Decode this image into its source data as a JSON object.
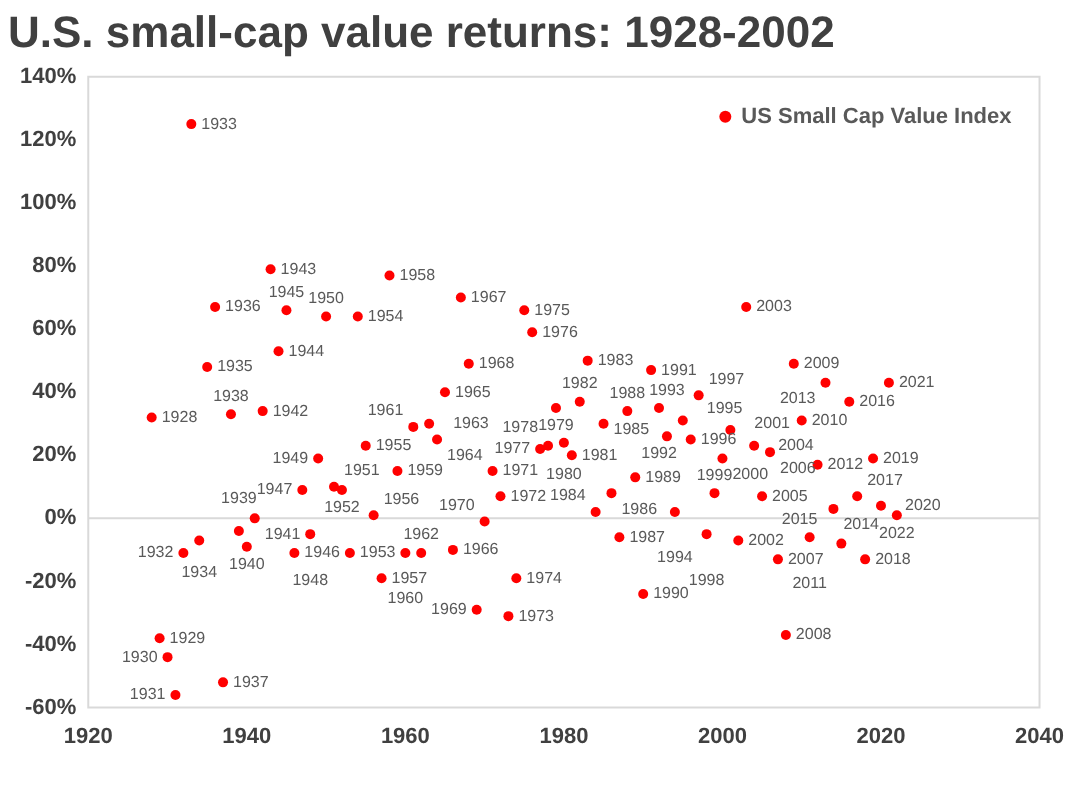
{
  "chart_data": {
    "type": "scatter",
    "title": "U.S. small-cap value returns: 1928-2002",
    "x": [
      1928,
      1929,
      1930,
      1931,
      1932,
      1933,
      1934,
      1935,
      1936,
      1937,
      1938,
      1939,
      1940,
      1941,
      1942,
      1943,
      1944,
      1945,
      1946,
      1947,
      1948,
      1949,
      1950,
      1951,
      1952,
      1953,
      1954,
      1955,
      1956,
      1957,
      1958,
      1959,
      1960,
      1961,
      1962,
      1963,
      1964,
      1965,
      1966,
      1967,
      1968,
      1969,
      1970,
      1971,
      1972,
      1973,
      1974,
      1975,
      1976,
      1977,
      1978,
      1979,
      1980,
      1981,
      1982,
      1983,
      1984,
      1985,
      1986,
      1987,
      1988,
      1989,
      1990,
      1991,
      1992,
      1993,
      1994,
      1995,
      1996,
      1997,
      1998,
      1999,
      2000,
      2001,
      2002,
      2003,
      2004,
      2005,
      2006,
      2007,
      2008,
      2009,
      2010,
      2011,
      2012,
      2013,
      2014,
      2015,
      2016,
      2017,
      2018,
      2019,
      2020,
      2021,
      2022
    ],
    "series": [
      {
        "name": "US Small Cap Value Index",
        "color": "#ff0000",
        "values": [
          32,
          -38,
          -44,
          -56,
          -11,
          125,
          -7,
          48,
          67,
          -52,
          33,
          -4,
          -9,
          0,
          34,
          79,
          53,
          66,
          -11,
          9,
          -5,
          19,
          64,
          10,
          9,
          -11,
          64,
          23,
          1,
          -19,
          77,
          15,
          -11,
          29,
          -11,
          30,
          25,
          40,
          -10,
          70,
          49,
          -29,
          -1,
          15,
          7,
          -31,
          -19,
          66,
          59,
          22,
          23,
          35,
          24,
          20,
          37,
          50,
          2,
          30,
          8,
          -6,
          34,
          13,
          -24,
          47,
          35,
          26,
          2,
          31,
          25,
          39,
          -5,
          8,
          19,
          28,
          -7,
          67,
          23,
          7,
          21,
          -13,
          -37,
          49,
          31,
          -6,
          17,
          43,
          3,
          -8,
          37,
          7,
          -13,
          19,
          4,
          43,
          1
        ]
      }
    ],
    "annotations": [
      {
        "text": "1928",
        "x": 1928,
        "y": 32
      },
      {
        "text": "1929",
        "x": 1929,
        "y": -38
      },
      {
        "text": "1930",
        "x": 1930,
        "y": -44
      },
      {
        "text": "1931",
        "x": 1931,
        "y": -56
      },
      {
        "text": "1932",
        "x": 1932,
        "y": -11
      },
      {
        "text": "1933",
        "x": 1933,
        "y": 125
      },
      {
        "text": "1934",
        "x": 1934,
        "y": -7
      },
      {
        "text": "1935",
        "x": 1935,
        "y": 48
      },
      {
        "text": "1936",
        "x": 1936,
        "y": 67
      },
      {
        "text": "1937",
        "x": 1937,
        "y": -52
      },
      {
        "text": "1938",
        "x": 1938,
        "y": 33
      },
      {
        "text": "1939",
        "x": 1939,
        "y": -4
      },
      {
        "text": "1940",
        "x": 1940,
        "y": -9
      },
      {
        "text": "1941",
        "x": 1941,
        "y": 0
      },
      {
        "text": "1942",
        "x": 1942,
        "y": 34
      },
      {
        "text": "1943",
        "x": 1943,
        "y": 79
      },
      {
        "text": "1944",
        "x": 1944,
        "y": 53
      },
      {
        "text": "1945",
        "x": 1945,
        "y": 66
      },
      {
        "text": "1946",
        "x": 1946,
        "y": -11
      },
      {
        "text": "1947",
        "x": 1947,
        "y": 9
      },
      {
        "text": "1948",
        "x": 1948,
        "y": -5
      },
      {
        "text": "1949",
        "x": 1949,
        "y": 19
      },
      {
        "text": "1950",
        "x": 1950,
        "y": 64
      },
      {
        "text": "1951",
        "x": 1951,
        "y": 10
      },
      {
        "text": "1952",
        "x": 1952,
        "y": 9
      },
      {
        "text": "1953",
        "x": 1953,
        "y": -11
      },
      {
        "text": "1954",
        "x": 1954,
        "y": 64
      },
      {
        "text": "1955",
        "x": 1955,
        "y": 23
      },
      {
        "text": "1956",
        "x": 1956,
        "y": 1
      },
      {
        "text": "1957",
        "x": 1957,
        "y": -19
      },
      {
        "text": "1958",
        "x": 1958,
        "y": 77
      },
      {
        "text": "1959",
        "x": 1959,
        "y": 15
      },
      {
        "text": "1960",
        "x": 1960,
        "y": -11
      },
      {
        "text": "1961",
        "x": 1961,
        "y": 29
      },
      {
        "text": "1962",
        "x": 1962,
        "y": -11
      },
      {
        "text": "1963",
        "x": 1963,
        "y": 30
      },
      {
        "text": "1964",
        "x": 1964,
        "y": 25
      },
      {
        "text": "1965",
        "x": 1965,
        "y": 40
      },
      {
        "text": "1966",
        "x": 1966,
        "y": -10
      },
      {
        "text": "1967",
        "x": 1967,
        "y": 70
      },
      {
        "text": "1968",
        "x": 1968,
        "y": 49
      },
      {
        "text": "1969",
        "x": 1969,
        "y": -29
      },
      {
        "text": "1970",
        "x": 1970,
        "y": -1
      },
      {
        "text": "1971",
        "x": 1971,
        "y": 15
      },
      {
        "text": "1972",
        "x": 1972,
        "y": 7
      },
      {
        "text": "1973",
        "x": 1973,
        "y": -31
      },
      {
        "text": "1974",
        "x": 1974,
        "y": -19
      },
      {
        "text": "1975",
        "x": 1975,
        "y": 66
      },
      {
        "text": "1976",
        "x": 1976,
        "y": 59
      },
      {
        "text": "1977",
        "x": 1977,
        "y": 22
      },
      {
        "text": "1978",
        "x": 1978,
        "y": 23
      },
      {
        "text": "1979",
        "x": 1979,
        "y": 35
      },
      {
        "text": "1980",
        "x": 1980,
        "y": 24
      },
      {
        "text": "1981",
        "x": 1981,
        "y": 20
      },
      {
        "text": "1982",
        "x": 1982,
        "y": 37
      },
      {
        "text": "1983",
        "x": 1983,
        "y": 50
      },
      {
        "text": "1984",
        "x": 1984,
        "y": 2
      },
      {
        "text": "1985",
        "x": 1985,
        "y": 30
      },
      {
        "text": "1986",
        "x": 1986,
        "y": 8
      },
      {
        "text": "1987",
        "x": 1987,
        "y": -6
      },
      {
        "text": "1988",
        "x": 1988,
        "y": 34
      },
      {
        "text": "1989",
        "x": 1989,
        "y": 13
      },
      {
        "text": "1990",
        "x": 1990,
        "y": -24
      },
      {
        "text": "1991",
        "x": 1991,
        "y": 47
      },
      {
        "text": "1992",
        "x": 1992,
        "y": 35
      },
      {
        "text": "1993",
        "x": 1993,
        "y": 26
      },
      {
        "text": "1994",
        "x": 1994,
        "y": 2
      },
      {
        "text": "1995",
        "x": 1995,
        "y": 31
      },
      {
        "text": "1996",
        "x": 1996,
        "y": 25
      },
      {
        "text": "1997",
        "x": 1997,
        "y": 39
      },
      {
        "text": "1998",
        "x": 1998,
        "y": -5
      },
      {
        "text": "1999",
        "x": 1999,
        "y": 8
      },
      {
        "text": "2000",
        "x": 2000,
        "y": 19
      },
      {
        "text": "2001",
        "x": 2001,
        "y": 28
      },
      {
        "text": "2002",
        "x": 2002,
        "y": -7
      },
      {
        "text": "2003",
        "x": 2003,
        "y": 67
      },
      {
        "text": "2004",
        "x": 2004,
        "y": 23
      },
      {
        "text": "2005",
        "x": 2005,
        "y": 7
      },
      {
        "text": "2006",
        "x": 2006,
        "y": 21
      },
      {
        "text": "2007",
        "x": 2007,
        "y": -13
      },
      {
        "text": "2008",
        "x": 2008,
        "y": -37
      },
      {
        "text": "2009",
        "x": 2009,
        "y": 49
      },
      {
        "text": "2010",
        "x": 2010,
        "y": 31
      },
      {
        "text": "2011",
        "x": 2011,
        "y": -6
      },
      {
        "text": "2012",
        "x": 2012,
        "y": 17
      },
      {
        "text": "2013",
        "x": 2013,
        "y": 43
      },
      {
        "text": "2014",
        "x": 2014,
        "y": 3
      },
      {
        "text": "2015",
        "x": 2015,
        "y": -8
      },
      {
        "text": "2016",
        "x": 2016,
        "y": 37
      },
      {
        "text": "2017",
        "x": 2017,
        "y": 7
      },
      {
        "text": "2018",
        "x": 2018,
        "y": -13
      },
      {
        "text": "2019",
        "x": 2019,
        "y": 19
      },
      {
        "text": "2020",
        "x": 2020,
        "y": 4
      },
      {
        "text": "2021",
        "x": 2021,
        "y": 43
      },
      {
        "text": "2022",
        "x": 2022,
        "y": 1
      }
    ],
    "xlim": [
      1920,
      2040
    ],
    "xticks": [
      1920,
      1940,
      1960,
      1980,
      2000,
      2020,
      2040
    ],
    "ylim": [
      -60,
      140
    ],
    "yticks": [
      {
        "value": -60,
        "label": "-60%"
      },
      {
        "value": -40,
        "label": "-40%"
      },
      {
        "value": -20,
        "label": "-20%"
      },
      {
        "value": 0,
        "label": "0%"
      },
      {
        "value": 20,
        "label": "20%"
      },
      {
        "value": 40,
        "label": "40%"
      },
      {
        "value": 60,
        "label": "60%"
      },
      {
        "value": 80,
        "label": "80%"
      },
      {
        "value": 100,
        "label": "100%"
      },
      {
        "value": 120,
        "label": "120%"
      },
      {
        "value": 140,
        "label": "140%"
      }
    ],
    "ref_lines": [
      {
        "axis": "y",
        "value": 0,
        "color": "#d9d9d9"
      }
    ],
    "grid": false,
    "legend": "top right",
    "marker": "circle"
  }
}
